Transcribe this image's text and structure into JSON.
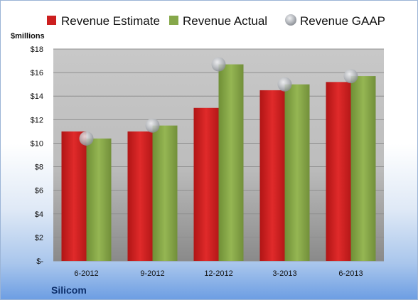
{
  "chart_data": {
    "type": "bar",
    "categories": [
      "6-2012",
      "9-2012",
      "12-2012",
      "3-2013",
      "6-2013"
    ],
    "series": [
      {
        "name": "Revenue Estimate",
        "kind": "bar",
        "color": "#cc1f1f",
        "values": [
          11.0,
          11.0,
          13.0,
          14.5,
          15.2
        ]
      },
      {
        "name": "Revenue Actual",
        "kind": "bar",
        "color": "#86a84a",
        "values": [
          10.4,
          11.5,
          16.7,
          15.0,
          15.7
        ]
      },
      {
        "name": "Revenue GAAP",
        "kind": "marker",
        "color": "#b9bcc2",
        "values": [
          10.4,
          11.5,
          16.7,
          15.0,
          15.7
        ]
      }
    ],
    "ylabel": "$millions",
    "ylim": [
      0,
      18
    ],
    "yticks": [
      0,
      2,
      4,
      6,
      8,
      10,
      12,
      14,
      16,
      18
    ],
    "ytick_labels": [
      "$-",
      "$2",
      "$4",
      "$6",
      "$8",
      "$10",
      "$12",
      "$14",
      "$16",
      "$18"
    ],
    "grid": true,
    "legend": "top",
    "company": "Silicom"
  }
}
